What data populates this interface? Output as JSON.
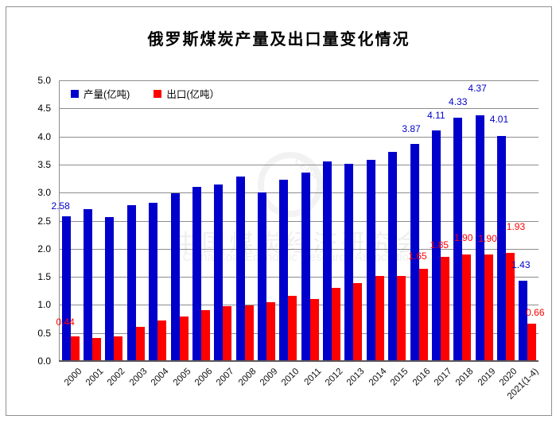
{
  "title": "俄罗斯煤炭产量及出口量变化情况",
  "watermark": {
    "circle_text": "CERA",
    "line1": "中国煤炭经济研究会",
    "line2": "China Coal Economic Research Association"
  },
  "colors": {
    "production": "#0000CC",
    "export": "#FF0000",
    "grid": "#8C8C8C",
    "axis": "#595959",
    "frame": "#909090"
  },
  "chart_data": {
    "type": "bar",
    "title": "俄罗斯煤炭产量及出口量变化情况",
    "categories": [
      "2000",
      "2001",
      "2002",
      "2003",
      "2004",
      "2005",
      "2006",
      "2007",
      "2008",
      "2009",
      "2010",
      "2011",
      "2012",
      "2013",
      "2014",
      "2015",
      "2016",
      "2017",
      "2018",
      "2019",
      "2020",
      "2021(1-4)"
    ],
    "series": [
      {
        "name": "产量(亿吨)",
        "color": "#0000CC",
        "values": [
          2.58,
          2.7,
          2.56,
          2.77,
          2.82,
          2.99,
          3.1,
          3.14,
          3.29,
          3.01,
          3.23,
          3.36,
          3.55,
          3.52,
          3.58,
          3.73,
          3.87,
          4.11,
          4.33,
          4.37,
          4.01,
          1.43
        ],
        "point_labels": [
          {
            "i": 0,
            "text": "2.58",
            "dx": -7,
            "dy": 3
          },
          {
            "i": 16,
            "text": "3.87",
            "dx": -4,
            "dy": 9
          },
          {
            "i": 17,
            "text": "4.11",
            "dx": 0,
            "dy": 9
          },
          {
            "i": 18,
            "text": "4.33",
            "dx": 0,
            "dy": 10
          },
          {
            "i": 19,
            "text": "4.37",
            "dx": -3,
            "dy": 24
          },
          {
            "i": 20,
            "text": "4.01",
            "dx": -3,
            "dy": 11
          },
          {
            "i": 21,
            "text": "1.43",
            "dx": -3,
            "dy": 10
          }
        ]
      },
      {
        "name": "出口(亿吨）",
        "color": "#FF0000",
        "values": [
          0.44,
          0.41,
          0.44,
          0.61,
          0.72,
          0.8,
          0.9,
          0.98,
          0.99,
          1.05,
          1.16,
          1.1,
          1.3,
          1.39,
          1.52,
          1.52,
          1.65,
          1.85,
          1.9,
          1.9,
          1.93,
          0.66
        ],
        "point_labels": [
          {
            "i": 0,
            "text": "0.44",
            "dx": -12,
            "dy": 8
          },
          {
            "i": 16,
            "text": "1.65",
            "dx": -7,
            "dy": 6
          },
          {
            "i": 17,
            "text": "1.85",
            "dx": -7,
            "dy": 5
          },
          {
            "i": 18,
            "text": "1.90",
            "dx": -4,
            "dy": 11
          },
          {
            "i": 19,
            "text": "1.90",
            "dx": -1,
            "dy": 10
          },
          {
            "i": 20,
            "text": "1.93",
            "dx": 7,
            "dy": 23
          },
          {
            "i": 21,
            "text": "0.66",
            "dx": 4,
            "dy": 4
          }
        ]
      }
    ],
    "ylim": [
      0,
      5
    ],
    "ytick_step": 0.5,
    "yticks": [
      "5.0",
      "4.5",
      "4.0",
      "3.5",
      "3.0",
      "2.5",
      "2.0",
      "1.5",
      "1.0",
      "0.5",
      "0.0"
    ],
    "grid": true,
    "legend_position": "top-left-inside"
  }
}
